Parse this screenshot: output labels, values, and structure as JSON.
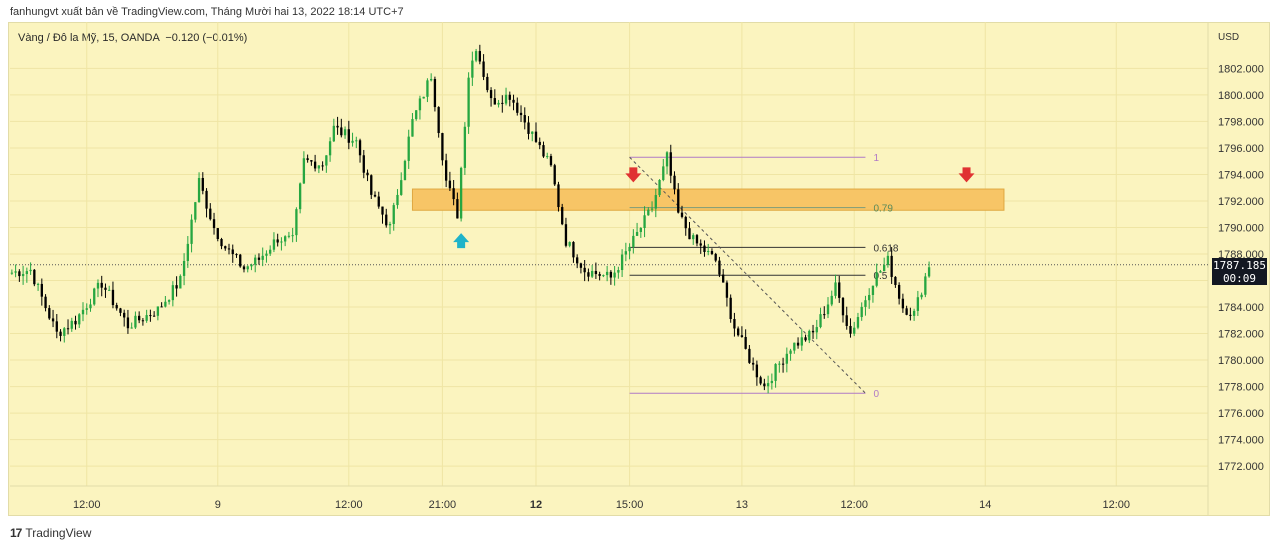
{
  "header": {
    "published": "fanhungvt xuất bản về TradingView.com, Tháng Mười hai 13, 2022 18:14 UTC+7",
    "symbol": "Vàng / Đô la Mỹ, 15, OANDA",
    "change": "−0.120 (−0.01%)"
  },
  "footer": {
    "brand": "TradingView",
    "logo": "17"
  },
  "price_tag": {
    "price": "1787.185",
    "countdown": "00:09"
  },
  "colors": {
    "bg": "#fbf4bf",
    "up": "#26a641",
    "down": "#000000",
    "zone": "#f7c566",
    "fib": "#b07ac6",
    "arrow_down": "#e03232",
    "arrow_up": "#1fb3c9"
  },
  "chart_data": {
    "type": "candlestick",
    "currency": "USD",
    "y_ticks": [
      "1802.000",
      "1800.000",
      "1798.000",
      "1796.000",
      "1794.000",
      "1792.000",
      "1790.000",
      "1788.000",
      "1786.000",
      "1784.000",
      "1782.000",
      "1780.000",
      "1778.000",
      "1776.000",
      "1774.000",
      "1772.000"
    ],
    "y_tick_values": [
      1802,
      1800,
      1798,
      1796,
      1794,
      1792,
      1790,
      1788,
      1786,
      1784,
      1782,
      1780,
      1778,
      1776,
      1774,
      1772
    ],
    "x_ticks": [
      {
        "label": "12:00",
        "bar": 20,
        "bold": false
      },
      {
        "label": "9",
        "bar": 55,
        "bold": false
      },
      {
        "label": "12:00",
        "bar": 90,
        "bold": false
      },
      {
        "label": "21:00",
        "bar": 115,
        "bold": false
      },
      {
        "label": "12",
        "bar": 140,
        "bold": true
      },
      {
        "label": "15:00",
        "bar": 165,
        "bold": false
      },
      {
        "label": "13",
        "bar": 195,
        "bold": false
      },
      {
        "label": "12:00",
        "bar": 225,
        "bold": false
      },
      {
        "label": "14",
        "bar": 260,
        "bold": false
      },
      {
        "label": "12:00",
        "bar": 295,
        "bold": false
      }
    ],
    "ylim": [
      1770.5,
      1805.5
    ],
    "bars_total": 320,
    "current_price": 1787.185,
    "supply_zone": {
      "from": 1791.3,
      "to": 1792.9,
      "bar_start": 107,
      "bar_end": 265
    },
    "fib_levels": [
      {
        "label": "1",
        "value": 1795.3
      },
      {
        "label": "0.79",
        "value": 1791.5
      },
      {
        "label": "0.618",
        "value": 1788.5
      },
      {
        "label": "0.5",
        "value": 1786.4
      },
      {
        "label": "0",
        "value": 1777.5
      }
    ],
    "fib_bar_start": 165,
    "fib_bar_end": 228,
    "arrows": [
      {
        "type": "down",
        "bar": 166,
        "value": 1793.7
      },
      {
        "type": "down",
        "bar": 255,
        "value": 1793.7
      },
      {
        "type": "up",
        "bar": 120,
        "value": 1789.5
      }
    ],
    "close_anchors": [
      [
        0,
        1786.6
      ],
      [
        5,
        1786.8
      ],
      [
        9,
        1784.0
      ],
      [
        12,
        1782.0
      ],
      [
        17,
        1783.0
      ],
      [
        24,
        1785.8
      ],
      [
        31,
        1782.6
      ],
      [
        39,
        1783.8
      ],
      [
        45,
        1786.0
      ],
      [
        50,
        1793.5
      ],
      [
        54,
        1790.0
      ],
      [
        57,
        1788.5
      ],
      [
        62,
        1786.9
      ],
      [
        66,
        1787.6
      ],
      [
        71,
        1789.2
      ],
      [
        75,
        1789.0
      ],
      [
        78,
        1795.0
      ],
      [
        83,
        1794.8
      ],
      [
        86,
        1797.5
      ],
      [
        92,
        1796.5
      ],
      [
        96,
        1792.5
      ],
      [
        101,
        1790.0
      ],
      [
        107,
        1798.0
      ],
      [
        112,
        1801.5
      ],
      [
        114,
        1797.5
      ],
      [
        116,
        1793.5
      ],
      [
        119,
        1791.0
      ],
      [
        122,
        1801.5
      ],
      [
        124,
        1803.7
      ],
      [
        128,
        1799.5
      ],
      [
        133,
        1800.0
      ],
      [
        139,
        1797.0
      ],
      [
        144,
        1794.5
      ],
      [
        148,
        1789.0
      ],
      [
        153,
        1786.8
      ],
      [
        160,
        1786.2
      ],
      [
        166,
        1789.0
      ],
      [
        171,
        1791.5
      ],
      [
        175,
        1795.3
      ],
      [
        178,
        1791.0
      ],
      [
        182,
        1789.0
      ],
      [
        188,
        1787.5
      ],
      [
        193,
        1782.5
      ],
      [
        198,
        1779.5
      ],
      [
        201,
        1778.0
      ],
      [
        208,
        1781.0
      ],
      [
        214,
        1782.0
      ],
      [
        220,
        1785.5
      ],
      [
        224,
        1782.0
      ],
      [
        230,
        1786.0
      ],
      [
        234,
        1787.5
      ],
      [
        238,
        1784.0
      ],
      [
        241,
        1783.5
      ],
      [
        245,
        1787.2
      ]
    ]
  }
}
